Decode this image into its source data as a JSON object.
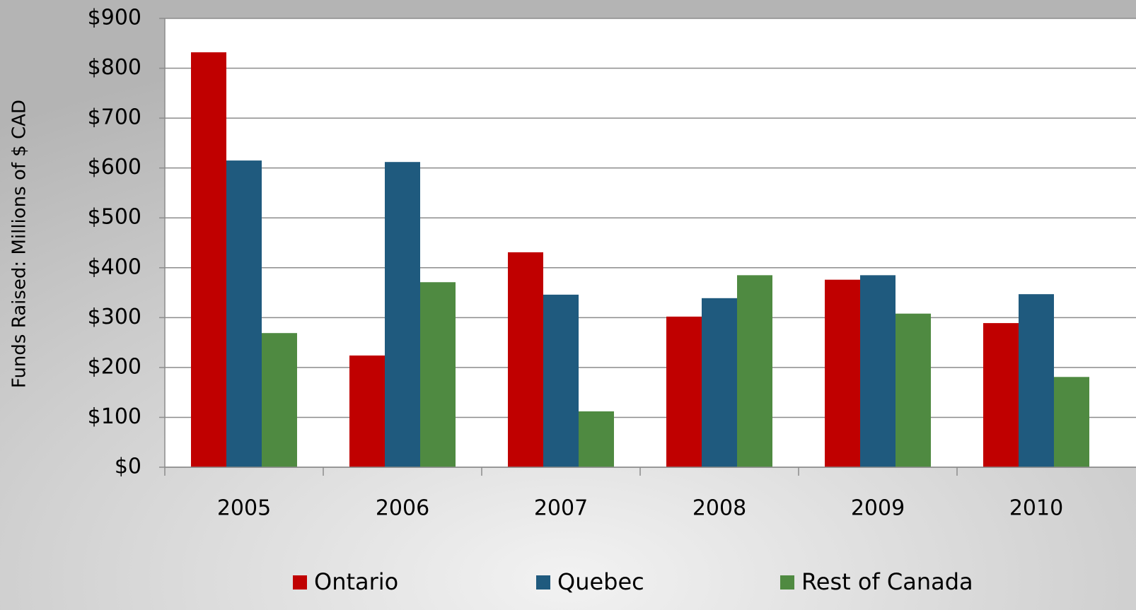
{
  "chart_data": {
    "type": "bar",
    "y_label": "Funds Raised: Millions of $ CAD",
    "categories": [
      "2005",
      "2006",
      "2007",
      "2008",
      "2009",
      "2010"
    ],
    "series": [
      {
        "name": "Ontario",
        "color": "#c00000",
        "values": [
          832,
          224,
          431,
          302,
          376,
          289
        ]
      },
      {
        "name": "Quebec",
        "color": "#1f5a7e",
        "values": [
          615,
          612,
          346,
          339,
          385,
          347
        ]
      },
      {
        "name": "Rest of Canada",
        "color": "#4f8a41",
        "values": [
          269,
          371,
          112,
          385,
          308,
          181
        ]
      }
    ],
    "ylim": [
      0,
      900
    ],
    "yticks": [
      {
        "value": 0,
        "label": "$0"
      },
      {
        "value": 100,
        "label": "$100"
      },
      {
        "value": 200,
        "label": "$200"
      },
      {
        "value": 300,
        "label": "$300"
      },
      {
        "value": 400,
        "label": "$400"
      },
      {
        "value": 500,
        "label": "$500"
      },
      {
        "value": 600,
        "label": "$600"
      },
      {
        "value": 700,
        "label": "$700"
      },
      {
        "value": 800,
        "label": "$800"
      },
      {
        "value": 900,
        "label": "$900"
      }
    ],
    "grid": true,
    "legend": "bottom"
  }
}
